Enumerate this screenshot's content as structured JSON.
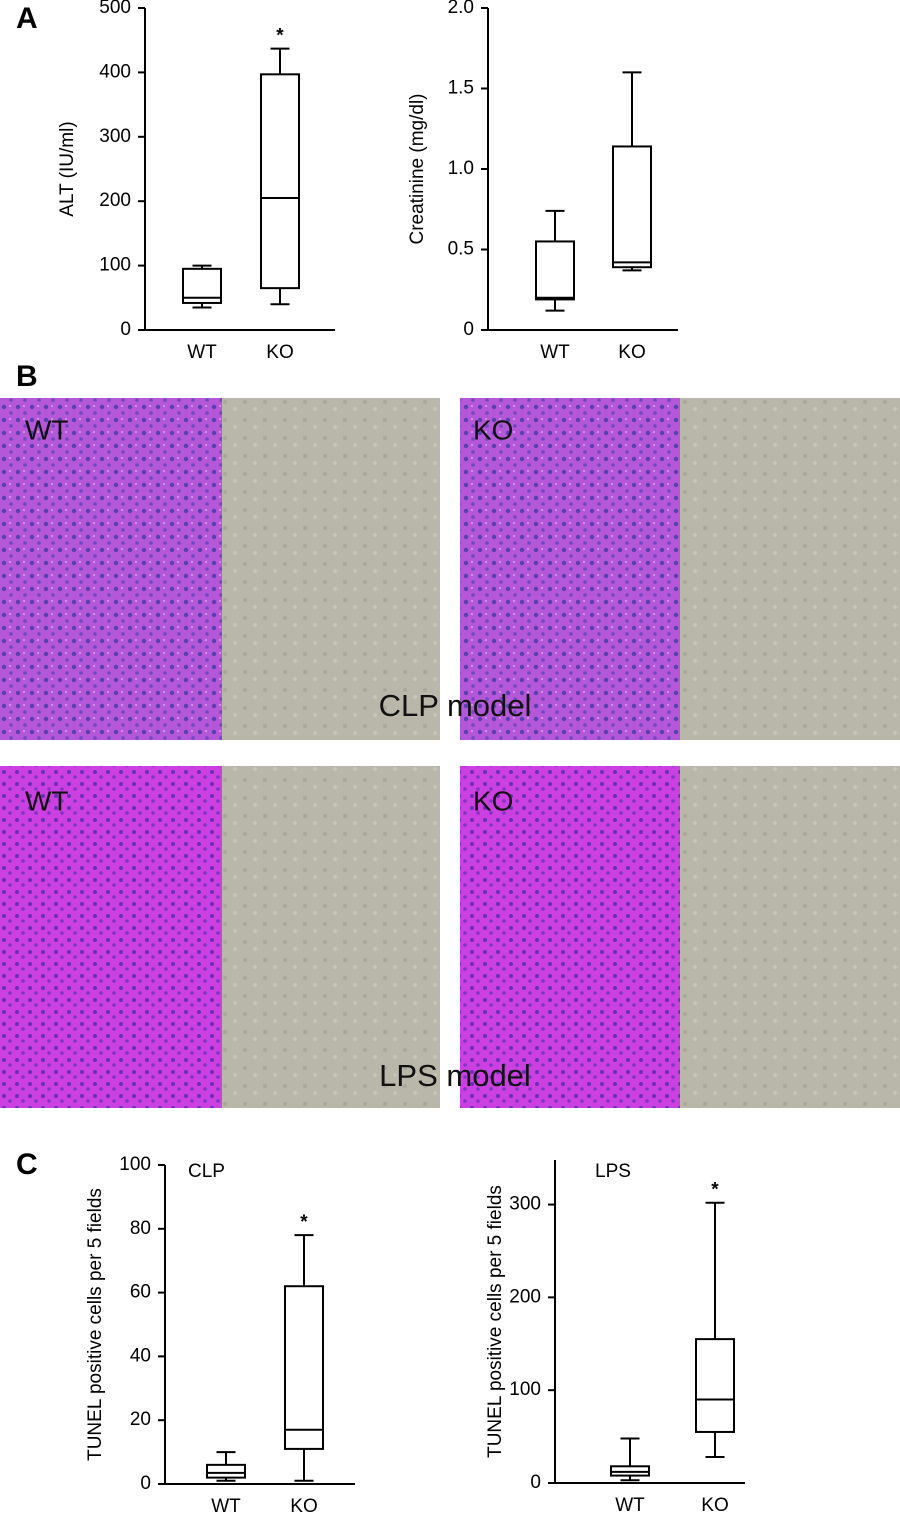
{
  "panels": [
    "A",
    "B",
    "C"
  ],
  "chart_data": [
    {
      "type": "box",
      "ylabel": "ALT (IU/ml)",
      "categories": [
        "WT",
        "KO"
      ],
      "ylim": [
        0,
        500
      ],
      "yticks": [
        0,
        100,
        200,
        300,
        400,
        500
      ],
      "boxes": [
        {
          "min": 35,
          "q1": 42,
          "median": 50,
          "q3": 95,
          "max": 100
        },
        {
          "min": 40,
          "q1": 65,
          "median": 205,
          "q3": 397,
          "max": 437
        }
      ],
      "markers": [
        null,
        "*"
      ]
    },
    {
      "type": "box",
      "ylabel": "Creatinine (mg/dl)",
      "categories": [
        "WT",
        "KO"
      ],
      "ylim": [
        0,
        2
      ],
      "yticks": [
        0,
        0.5,
        {
          "value": 1,
          "label": "1.0"
        },
        1.5,
        {
          "value": 2,
          "label": "2.0"
        }
      ],
      "boxes": [
        {
          "min": 0.12,
          "q1": 0.19,
          "median": 0.2,
          "q3": 0.55,
          "max": 0.74
        },
        {
          "min": 0.37,
          "q1": 0.39,
          "median": 0.42,
          "q3": 1.14,
          "max": 1.6
        }
      ],
      "markers": [
        null,
        null
      ]
    },
    {
      "type": "box",
      "annotation": "CLP",
      "ylabel": "TUNEL positive cells per 5 fields",
      "categories": [
        "WT",
        "KO"
      ],
      "ylim": [
        0,
        100
      ],
      "yticks": [
        0,
        20,
        40,
        60,
        80,
        100
      ],
      "boxes": [
        {
          "min": 1,
          "q1": 2,
          "median": 3.5,
          "q3": 6,
          "max": 10
        },
        {
          "min": 1,
          "q1": 11,
          "median": 17,
          "q3": 62,
          "max": 78
        }
      ],
      "markers": [
        null,
        "*"
      ]
    },
    {
      "type": "box",
      "annotation": "LPS",
      "ylabel": "TUNEL positive cells per 5 fields",
      "categories": [
        "WT",
        "KO"
      ],
      "ylim": [
        0,
        348
      ],
      "yticks": [
        0,
        100,
        200,
        300
      ],
      "boxes": [
        {
          "min": 3,
          "q1": 8,
          "median": 12,
          "q3": 18,
          "max": 48
        },
        {
          "min": 28,
          "q1": 55,
          "median": 90,
          "q3": 155,
          "max": 302
        }
      ],
      "markers": [
        null,
        "*"
      ]
    }
  ],
  "micrographs": {
    "rows": [
      {
        "caption": "CLP model",
        "labels": [
          "WT",
          "KO"
        ]
      },
      {
        "caption": "LPS model",
        "labels": [
          "WT",
          "KO"
        ]
      }
    ]
  }
}
